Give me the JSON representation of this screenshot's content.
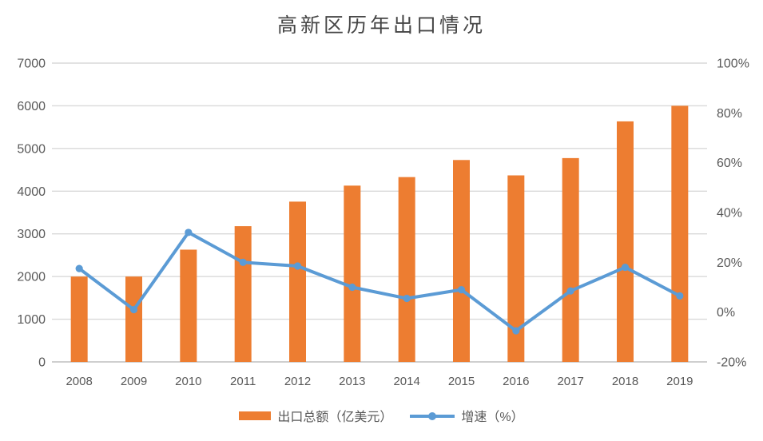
{
  "title": "高新区历年出口情况",
  "colors": {
    "bar": "#ED7D31",
    "line": "#5B9BD5",
    "grid": "#D9D9D9",
    "axis_line": "#BFBFBF",
    "axis_text": "#595959",
    "title_text": "#454545",
    "background": "#FFFFFF"
  },
  "chart_data": {
    "type": "combo-bar-line",
    "title": "高新区历年出口情况",
    "categories": [
      "2008",
      "2009",
      "2010",
      "2011",
      "2012",
      "2013",
      "2014",
      "2015",
      "2016",
      "2017",
      "2018",
      "2019"
    ],
    "series": [
      {
        "name": "出口总额（亿美元）",
        "type": "bar",
        "axis": "left",
        "color": "#ED7D31",
        "values": [
          2000,
          2000,
          2630,
          3180,
          3755,
          4130,
          4330,
          4730,
          4370,
          4775,
          5635,
          6000
        ]
      },
      {
        "name": "增速（%）",
        "type": "line",
        "axis": "right",
        "color": "#5B9BD5",
        "values": [
          17.5,
          1,
          32,
          20,
          18.5,
          10,
          5.5,
          9,
          -7.5,
          8.5,
          18,
          6.5
        ]
      }
    ],
    "left_axis": {
      "min": 0,
      "max": 7000,
      "step": 1000,
      "tick_values": [
        0,
        1000,
        2000,
        3000,
        4000,
        5000,
        6000,
        7000
      ],
      "tick_labels": [
        "0",
        "1000",
        "2000",
        "3000",
        "4000",
        "5000",
        "6000",
        "7000"
      ]
    },
    "right_axis": {
      "min": -20,
      "max": 100,
      "step": 20,
      "tick_values": [
        -20,
        0,
        20,
        40,
        60,
        80,
        100
      ],
      "tick_labels": [
        "-20%",
        "0%",
        "20%",
        "40%",
        "60%",
        "80%",
        "100%"
      ]
    },
    "grid": true,
    "legend_position": "bottom"
  },
  "legend": {
    "items": [
      {
        "label": "出口总额（亿美元）",
        "swatch": "bar"
      },
      {
        "label": "增速（%）",
        "swatch": "line"
      }
    ]
  }
}
